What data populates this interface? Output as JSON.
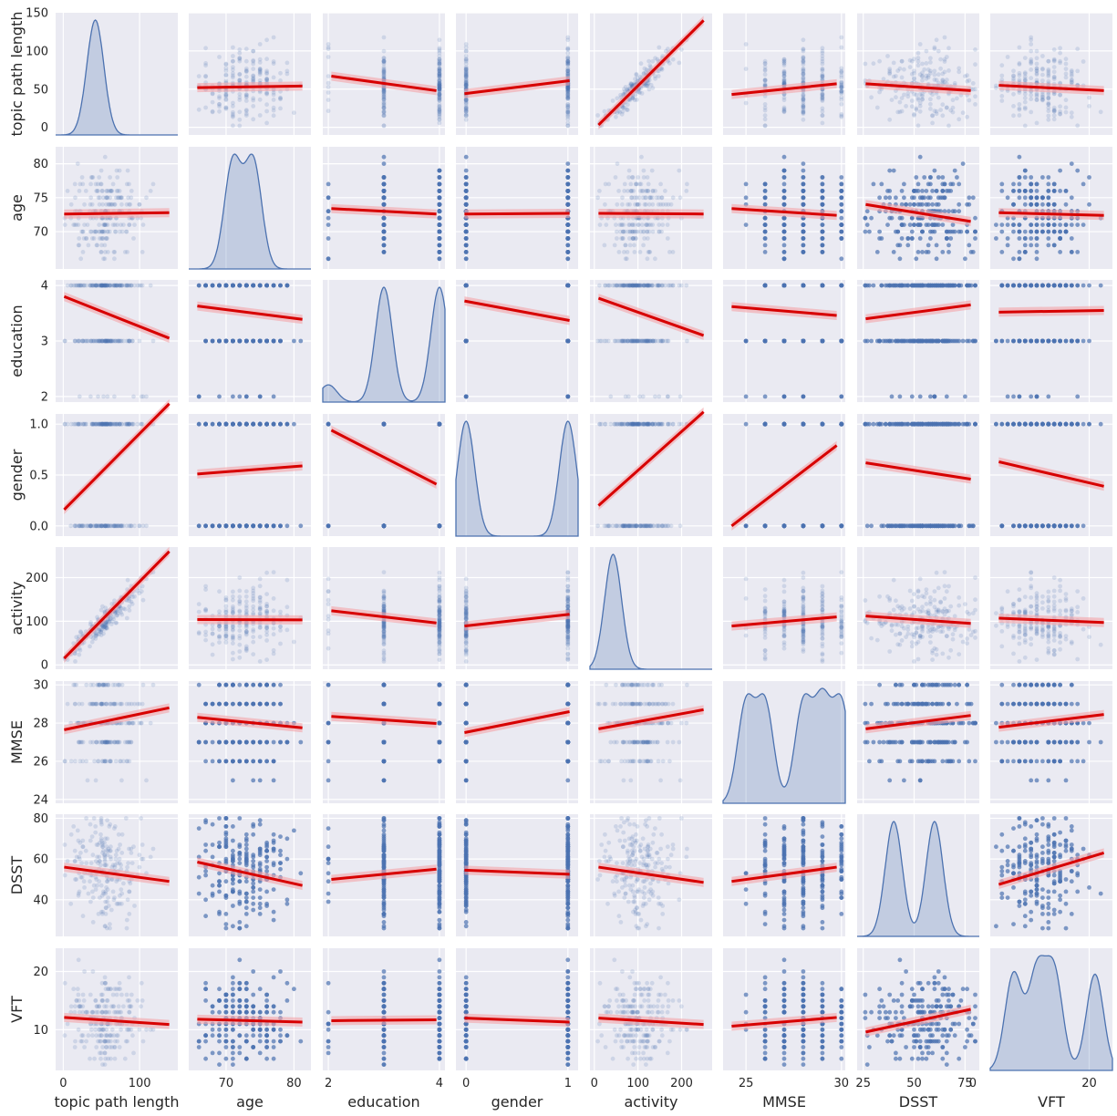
{
  "chart_data": {
    "type": "pairplot",
    "variables": [
      "topic path length",
      "age",
      "education",
      "gender",
      "activity",
      "MMSE",
      "DSST",
      "VFT"
    ],
    "diagonal": "kde",
    "off_diagonal": "scatter with linear regression fit and confidence band",
    "colors": {
      "points": "#4c72b0",
      "regression": "#d70000",
      "band": "#f4a3a8",
      "panel_bg": "#eaeaf2",
      "grid": "#ffffff"
    },
    "grid": true,
    "axes": {
      "topic path length": {
        "range": [
          -10,
          150
        ],
        "ticks": [
          0,
          100
        ],
        "row_ticks": [
          0,
          50,
          100,
          150
        ]
      },
      "age": {
        "range": [
          64.5,
          82.5
        ],
        "ticks": [
          70,
          80
        ],
        "row_ticks": [
          70,
          75,
          80
        ]
      },
      "education": {
        "range": [
          1.9,
          4.1
        ],
        "ticks": [
          2,
          4
        ],
        "row_ticks": [
          2,
          3,
          4
        ]
      },
      "gender": {
        "range": [
          -0.1,
          1.1
        ],
        "ticks": [
          0,
          1
        ],
        "row_ticks": [
          0.0,
          0.5,
          1.0
        ]
      },
      "activity": {
        "range": [
          -10,
          270
        ],
        "ticks": [
          0,
          100,
          200
        ],
        "row_ticks": [
          0,
          100,
          200
        ]
      },
      "MMSE": {
        "range": [
          23.8,
          30.2
        ],
        "ticks": [
          25,
          30
        ],
        "row_ticks": [
          24,
          26,
          28,
          30
        ]
      },
      "DSST": {
        "range": [
          22,
          82
        ],
        "ticks": [
          25,
          50,
          75
        ],
        "row_ticks": [
          40,
          60,
          80
        ]
      },
      "VFT": {
        "range": [
          3,
          24
        ],
        "ticks": [
          0,
          20
        ],
        "row_ticks": [
          10,
          20
        ]
      }
    },
    "regression_lines": [
      {
        "x": "age",
        "y": "topic path length",
        "y_at_x_min": 52,
        "y_at_x_max": 54
      },
      {
        "x": "education",
        "y": "topic path length",
        "y_at_x_min": 67,
        "y_at_x_max": 48
      },
      {
        "x": "gender",
        "y": "topic path length",
        "y_at_x_min": 44,
        "y_at_x_max": 61
      },
      {
        "x": "activity",
        "y": "topic path length",
        "y_at_x_min": 3,
        "y_at_x_max": 140
      },
      {
        "x": "MMSE",
        "y": "topic path length",
        "y_at_x_min": 43,
        "y_at_x_max": 57
      },
      {
        "x": "DSST",
        "y": "topic path length",
        "y_at_x_min": 57,
        "y_at_x_max": 48
      },
      {
        "x": "VFT",
        "y": "topic path length",
        "y_at_x_min": 55,
        "y_at_x_max": 48
      },
      {
        "x": "topic path length",
        "y": "age",
        "y_at_x_min": 72.6,
        "y_at_x_max": 72.8
      },
      {
        "x": "education",
        "y": "age",
        "y_at_x_min": 73.4,
        "y_at_x_max": 72.6
      },
      {
        "x": "gender",
        "y": "age",
        "y_at_x_min": 72.6,
        "y_at_x_max": 72.7
      },
      {
        "x": "activity",
        "y": "age",
        "y_at_x_min": 72.7,
        "y_at_x_max": 72.6
      },
      {
        "x": "MMSE",
        "y": "age",
        "y_at_x_min": 73.4,
        "y_at_x_max": 72.4
      },
      {
        "x": "DSST",
        "y": "age",
        "y_at_x_min": 74.0,
        "y_at_x_max": 71.5
      },
      {
        "x": "VFT",
        "y": "age",
        "y_at_x_min": 72.8,
        "y_at_x_max": 72.4
      },
      {
        "x": "topic path length",
        "y": "education",
        "y_at_x_min": 3.8,
        "y_at_x_max": 3.05
      },
      {
        "x": "age",
        "y": "education",
        "y_at_x_min": 3.63,
        "y_at_x_max": 3.39
      },
      {
        "x": "gender",
        "y": "education",
        "y_at_x_min": 3.72,
        "y_at_x_max": 3.37
      },
      {
        "x": "activity",
        "y": "education",
        "y_at_x_min": 3.77,
        "y_at_x_max": 3.1
      },
      {
        "x": "MMSE",
        "y": "education",
        "y_at_x_min": 3.62,
        "y_at_x_max": 3.46
      },
      {
        "x": "DSST",
        "y": "education",
        "y_at_x_min": 3.4,
        "y_at_x_max": 3.65
      },
      {
        "x": "VFT",
        "y": "education",
        "y_at_x_min": 3.52,
        "y_at_x_max": 3.55
      },
      {
        "x": "topic path length",
        "y": "gender",
        "y_at_x_min": 0.16,
        "y_at_x_max": 1.2
      },
      {
        "x": "age",
        "y": "gender",
        "y_at_x_min": 0.51,
        "y_at_x_max": 0.59
      },
      {
        "x": "education",
        "y": "gender",
        "y_at_x_min": 0.94,
        "y_at_x_max": 0.41
      },
      {
        "x": "activity",
        "y": "gender",
        "y_at_x_min": 0.2,
        "y_at_x_max": 1.12
      },
      {
        "x": "MMSE",
        "y": "gender",
        "y_at_x_min": 0.0,
        "y_at_x_max": 0.79
      },
      {
        "x": "DSST",
        "y": "gender",
        "y_at_x_min": 0.62,
        "y_at_x_max": 0.46
      },
      {
        "x": "VFT",
        "y": "gender",
        "y_at_x_min": 0.63,
        "y_at_x_max": 0.39
      },
      {
        "x": "topic path length",
        "y": "activity",
        "y_at_x_min": 15,
        "y_at_x_max": 260
      },
      {
        "x": "age",
        "y": "activity",
        "y_at_x_min": 104,
        "y_at_x_max": 103
      },
      {
        "x": "education",
        "y": "activity",
        "y_at_x_min": 124,
        "y_at_x_max": 96
      },
      {
        "x": "gender",
        "y": "activity",
        "y_at_x_min": 89,
        "y_at_x_max": 116
      },
      {
        "x": "MMSE",
        "y": "activity",
        "y_at_x_min": 89,
        "y_at_x_max": 110
      },
      {
        "x": "DSST",
        "y": "activity",
        "y_at_x_min": 112,
        "y_at_x_max": 95
      },
      {
        "x": "VFT",
        "y": "activity",
        "y_at_x_min": 107,
        "y_at_x_max": 97
      },
      {
        "x": "topic path length",
        "y": "MMSE",
        "y_at_x_min": 27.65,
        "y_at_x_max": 28.8
      },
      {
        "x": "age",
        "y": "MMSE",
        "y_at_x_min": 28.3,
        "y_at_x_max": 27.75
      },
      {
        "x": "education",
        "y": "MMSE",
        "y_at_x_min": 28.35,
        "y_at_x_max": 27.98
      },
      {
        "x": "gender",
        "y": "MMSE",
        "y_at_x_min": 27.5,
        "y_at_x_max": 28.6
      },
      {
        "x": "activity",
        "y": "MMSE",
        "y_at_x_min": 27.7,
        "y_at_x_max": 28.7
      },
      {
        "x": "DSST",
        "y": "MMSE",
        "y_at_x_min": 27.7,
        "y_at_x_max": 28.4
      },
      {
        "x": "VFT",
        "y": "MMSE",
        "y_at_x_min": 27.78,
        "y_at_x_max": 28.45
      },
      {
        "x": "topic path length",
        "y": "DSST",
        "y_at_x_min": 56,
        "y_at_x_max": 49
      },
      {
        "x": "age",
        "y": "DSST",
        "y_at_x_min": 58.5,
        "y_at_x_max": 47
      },
      {
        "x": "education",
        "y": "DSST",
        "y_at_x_min": 50,
        "y_at_x_max": 55
      },
      {
        "x": "gender",
        "y": "DSST",
        "y_at_x_min": 54.5,
        "y_at_x_max": 52.5
      },
      {
        "x": "activity",
        "y": "DSST",
        "y_at_x_min": 56,
        "y_at_x_max": 48.5
      },
      {
        "x": "MMSE",
        "y": "DSST",
        "y_at_x_min": 49,
        "y_at_x_max": 56
      },
      {
        "x": "VFT",
        "y": "DSST",
        "y_at_x_min": 47.5,
        "y_at_x_max": 63
      },
      {
        "x": "topic path length",
        "y": "VFT",
        "y_at_x_min": 12.1,
        "y_at_x_max": 10.9
      },
      {
        "x": "age",
        "y": "VFT",
        "y_at_x_min": 11.8,
        "y_at_x_max": 11.3
      },
      {
        "x": "education",
        "y": "VFT",
        "y_at_x_min": 11.55,
        "y_at_x_max": 11.7
      },
      {
        "x": "gender",
        "y": "VFT",
        "y_at_x_min": 12.0,
        "y_at_x_max": 11.3
      },
      {
        "x": "activity",
        "y": "VFT",
        "y_at_x_min": 12.0,
        "y_at_x_max": 10.9
      },
      {
        "x": "MMSE",
        "y": "VFT",
        "y_at_x_min": 10.6,
        "y_at_x_max": 12.1
      },
      {
        "x": "DSST",
        "y": "VFT",
        "y_at_x_min": 9.6,
        "y_at_x_max": 13.5
      }
    ],
    "kde_peaks": {
      "topic path length": [
        42
      ],
      "age": [
        71,
        74
      ],
      "education": [
        2,
        3,
        4
      ],
      "gender": [
        0,
        1
      ],
      "activity": [
        43
      ],
      "MMSE": [
        25,
        26,
        28,
        29,
        30
      ],
      "DSST": [
        40,
        60
      ],
      "VFT": [
        7,
        11,
        14,
        21
      ]
    }
  }
}
